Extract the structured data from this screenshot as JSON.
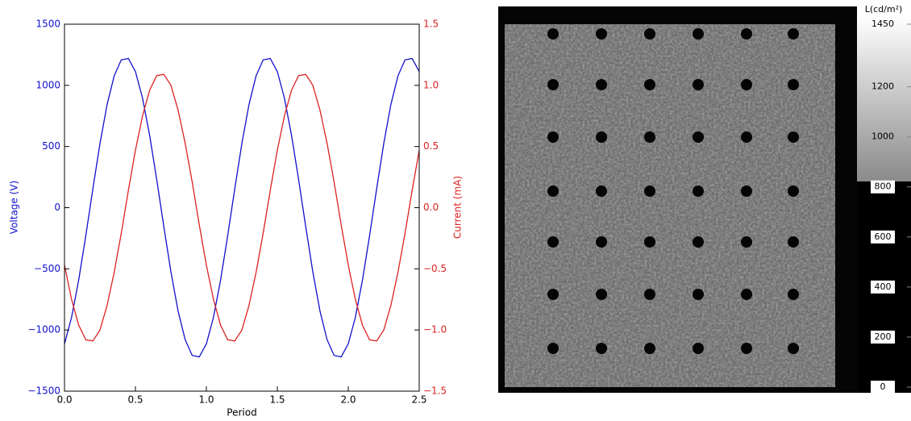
{
  "chart_data": [
    {
      "type": "line",
      "xlabel": "Period",
      "ylabel": "Voltage (V)",
      "y2label": "Current (mA)",
      "x": [
        0,
        0.05,
        0.1,
        0.15,
        0.2,
        0.25,
        0.3,
        0.35,
        0.4,
        0.45,
        0.5,
        0.55,
        0.6,
        0.65,
        0.7,
        0.75,
        0.8,
        0.85,
        0.9,
        0.95,
        1,
        1.05,
        1.1,
        1.15,
        1.2,
        1.25,
        1.3,
        1.35,
        1.4,
        1.45,
        1.5,
        1.55,
        1.6,
        1.65,
        1.7,
        1.75,
        1.8,
        1.85,
        1.9,
        1.95,
        2,
        2.05,
        2.1,
        2.15,
        2.2,
        2.25,
        2.3,
        2.35,
        2.4,
        2.45,
        2.5
      ],
      "series": [
        {
          "name": "Voltage (V)",
          "color": "#1010cc",
          "axis": "y",
          "values": [
            -1113,
            -896,
            -592,
            -230,
            154,
            524,
            842,
            1077,
            1208,
            1220,
            1113,
            896,
            592,
            230,
            -154,
            -524,
            -842,
            -1077,
            -1208,
            -1220,
            -1113,
            -896,
            -592,
            -230,
            154,
            524,
            842,
            1077,
            1208,
            1220,
            1113,
            896,
            592,
            230,
            -154,
            -524,
            -842,
            -1077,
            -1208,
            -1220,
            -1113,
            -896,
            -592,
            -230,
            154,
            524,
            842,
            1077,
            1208,
            1220,
            1113
          ]
        },
        {
          "name": "Current (mA)",
          "color": "#dd2222",
          "axis": "y2",
          "values": [
            -0.47,
            -0.75,
            -0.96,
            -1.08,
            -1.09,
            -1,
            -0.8,
            -0.53,
            -0.21,
            0.14,
            0.47,
            0.75,
            0.96,
            1.08,
            1.09,
            1,
            0.8,
            0.53,
            0.21,
            -0.14,
            -0.47,
            -0.75,
            -0.96,
            -1.08,
            -1.09,
            -1,
            -0.8,
            -0.53,
            -0.21,
            0.14,
            0.47,
            0.75,
            0.96,
            1.08,
            1.09,
            1,
            0.8,
            0.53,
            0.21,
            -0.14,
            -0.47,
            -0.75,
            -0.96,
            -1.08,
            -1.09,
            -1,
            -0.8,
            -0.53,
            -0.21,
            0.14,
            0.47
          ]
        }
      ],
      "xlim": [
        0,
        2.5
      ],
      "xticks": [
        {
          "value": 0,
          "label": "0.0"
        },
        0.5,
        {
          "value": 1,
          "label": "1.0"
        },
        1.5,
        {
          "value": 2,
          "label": "2.0"
        },
        2.5
      ],
      "ylim": [
        -1500,
        1500
      ],
      "yticks": [
        {
          "value": -1500,
          "label": "−1500"
        },
        {
          "value": -1000,
          "label": "−1000"
        },
        {
          "value": -500,
          "label": "−500"
        },
        0,
        500,
        1000,
        1500
      ],
      "y2lim": [
        -1.5,
        1.5
      ],
      "y2ticks": [
        {
          "value": -1.5,
          "label": "−1.5"
        },
        {
          "value": -1,
          "label": "−1.0"
        },
        {
          "value": -0.5,
          "label": "−0.5"
        },
        {
          "value": 0,
          "label": "0.0"
        },
        0.5,
        {
          "value": 1,
          "label": "1.0"
        },
        1.5
      ]
    },
    {
      "type": "image",
      "colorbar_label": "L(cd/m²)",
      "clim": [
        0,
        1450
      ],
      "cticks": [
        0,
        200,
        400,
        600,
        800,
        1000,
        1200,
        1450
      ]
    }
  ]
}
